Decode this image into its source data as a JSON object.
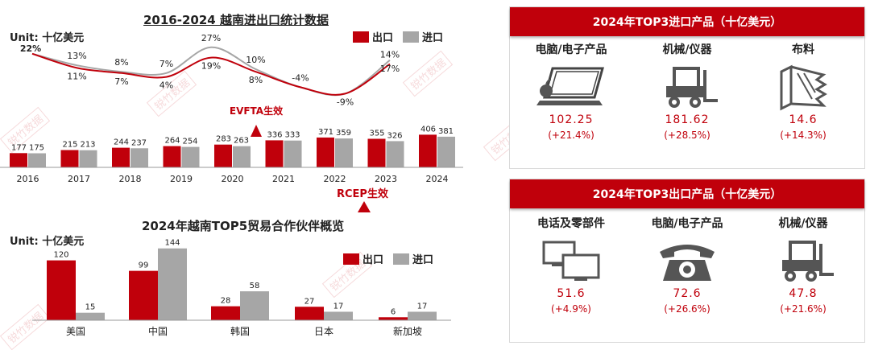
{
  "colors": {
    "export": "#c0000b",
    "import": "#a6a6a6",
    "header": "#c0000b"
  },
  "watermark": "锐竹数据",
  "chart_data": [
    {
      "type": "bar",
      "title": "2016-2024 越南进出口统计数据",
      "unit": "Unit: 十亿美元",
      "categories": [
        "2016",
        "2017",
        "2018",
        "2019",
        "2020",
        "2021",
        "2022",
        "2023",
        "2024"
      ],
      "series": [
        {
          "name": "出口",
          "values": [
            177,
            215,
            244,
            264,
            283,
            336,
            371,
            355,
            406
          ]
        },
        {
          "name": "进口",
          "values": [
            175,
            213,
            237,
            254,
            263,
            333,
            359,
            326,
            381
          ]
        }
      ],
      "growth_series": [
        {
          "name": "出口",
          "values": [
            22,
            11,
            7,
            4,
            19,
            8,
            -4,
            -9,
            14
          ],
          "labels": [
            "22%",
            "11%",
            "7%",
            "4%",
            "19%",
            "8%",
            "-4%",
            "-9%",
            "14%"
          ]
        },
        {
          "name": "进口",
          "values": [
            22,
            13,
            8,
            7,
            27,
            10,
            -4,
            -9,
            17
          ],
          "labels": [
            "",
            "13%",
            "8%",
            "7%",
            "27%",
            "10%",
            "",
            "",
            "17%"
          ]
        }
      ],
      "annotations": [
        {
          "text": "EVFTA生效",
          "after_category": "2020"
        },
        {
          "text": "RCEP生效",
          "after_category": "2022"
        }
      ],
      "legend": "top-right",
      "ylim": [
        0,
        450
      ]
    },
    {
      "type": "bar",
      "title": "2024年越南TOP5贸易合作伙伴概览",
      "unit": "Unit: 十亿美元",
      "categories": [
        "美国",
        "中国",
        "韩国",
        "日本",
        "新加坡"
      ],
      "series": [
        {
          "name": "出口",
          "values": [
            120,
            99,
            28,
            27,
            6
          ]
        },
        {
          "name": "进口",
          "values": [
            15,
            144,
            58,
            17,
            17
          ]
        }
      ],
      "legend": "top-right",
      "ylim": [
        0,
        150
      ]
    }
  ],
  "import_panel": {
    "title": "2024年TOP3进口产品（十亿美元）",
    "items": [
      {
        "name": "电脑/电子产品",
        "value": "102.25",
        "change": "(+21.4%)",
        "icon": "laptop-icon"
      },
      {
        "name": "机械/仪器",
        "value": "181.62",
        "change": "(+28.5%)",
        "icon": "forklift-icon"
      },
      {
        "name": "布料",
        "value": "14.6",
        "change": "(+14.3%)",
        "icon": "fabric-icon"
      }
    ]
  },
  "export_panel": {
    "title": "2024年TOP3出口产品（十亿美元）",
    "items": [
      {
        "name": "电话及零部件",
        "value": "51.6",
        "change": "(+4.9%)",
        "icon": "monitors-icon"
      },
      {
        "name": "电脑/电子产品",
        "value": "72.6",
        "change": "(+26.6%)",
        "icon": "telephone-icon"
      },
      {
        "name": "机械/仪器",
        "value": "47.8",
        "change": "(+21.6%)",
        "icon": "forklift-icon"
      }
    ]
  }
}
